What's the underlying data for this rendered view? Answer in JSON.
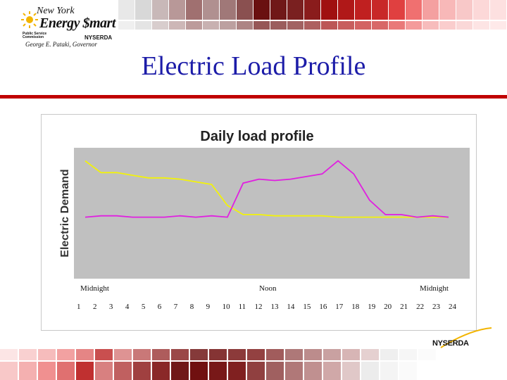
{
  "header": {
    "logo_line1": "New York",
    "logo_line2": "Energy $mart",
    "logo_psc": "Public Service Commission",
    "logo_nyserda": "NYSERDA",
    "logo_governor": "George E. Pataki, Governor",
    "title": "Electric Load Profile"
  },
  "footer": {
    "logo": "NYSERDA"
  },
  "colors": {
    "title": "#1c1ca8",
    "rule": "#c00000",
    "plot_bg": "#c0c0c0",
    "yellow_series": "#f2f20a",
    "magenta_series": "#e020e0"
  },
  "axis_labels": {
    "midnight_left": "Midnight",
    "noon": "Noon",
    "midnight_right": "Midnight"
  },
  "chart_data": {
    "type": "line",
    "title": "Daily load profile",
    "xlabel": "",
    "ylabel": "Electric Demand",
    "categories": [
      "1",
      "2",
      "3",
      "4",
      "5",
      "6",
      "7",
      "8",
      "9",
      "10",
      "11",
      "12",
      "13",
      "14",
      "15",
      "16",
      "17",
      "18",
      "19",
      "20",
      "21",
      "22",
      "23",
      "24"
    ],
    "y_ticks_shown": false,
    "ylim": [
      0,
      100
    ],
    "grid": false,
    "legend": "none",
    "series": [
      {
        "color": "#f2f20a",
        "values": [
          90,
          81,
          81,
          79,
          77,
          77,
          76,
          74,
          72,
          56,
          49,
          49,
          48,
          48,
          48,
          48,
          47,
          47,
          47,
          47,
          47,
          47,
          47,
          47
        ]
      },
      {
        "color": "#e020e0",
        "values": [
          47,
          48,
          48,
          47,
          47,
          47,
          48,
          47,
          48,
          47,
          73,
          76,
          75,
          76,
          78,
          80,
          90,
          80,
          60,
          49,
          49,
          47,
          48,
          47
        ]
      }
    ]
  }
}
